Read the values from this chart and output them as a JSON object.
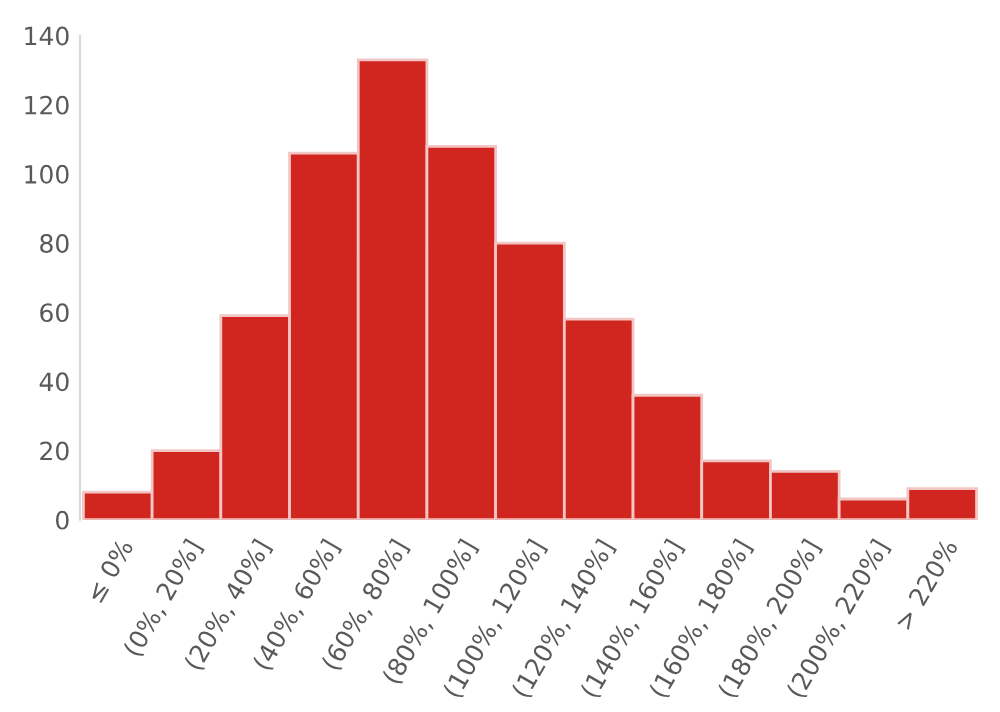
{
  "chart_data": {
    "type": "bar",
    "categories": [
      "≤ 0%",
      "(0%, 20%]",
      "(20%, 40%]",
      "(40%, 60%]",
      "(60%, 80%]",
      "(80%, 100%]",
      "(100%, 120%]",
      "(120%, 140%]",
      "(140%, 160%]",
      "(160%, 180%]",
      "(180%, 200%]",
      "(200%, 220%]",
      "> 220%"
    ],
    "values": [
      8,
      20,
      59,
      106,
      133,
      108,
      80,
      58,
      36,
      17,
      14,
      6,
      9
    ],
    "color": "#d0261f",
    "ylim": [
      0,
      140
    ],
    "yticks": [
      0,
      20,
      40,
      60,
      80,
      100,
      120,
      140
    ],
    "grid": false
  }
}
